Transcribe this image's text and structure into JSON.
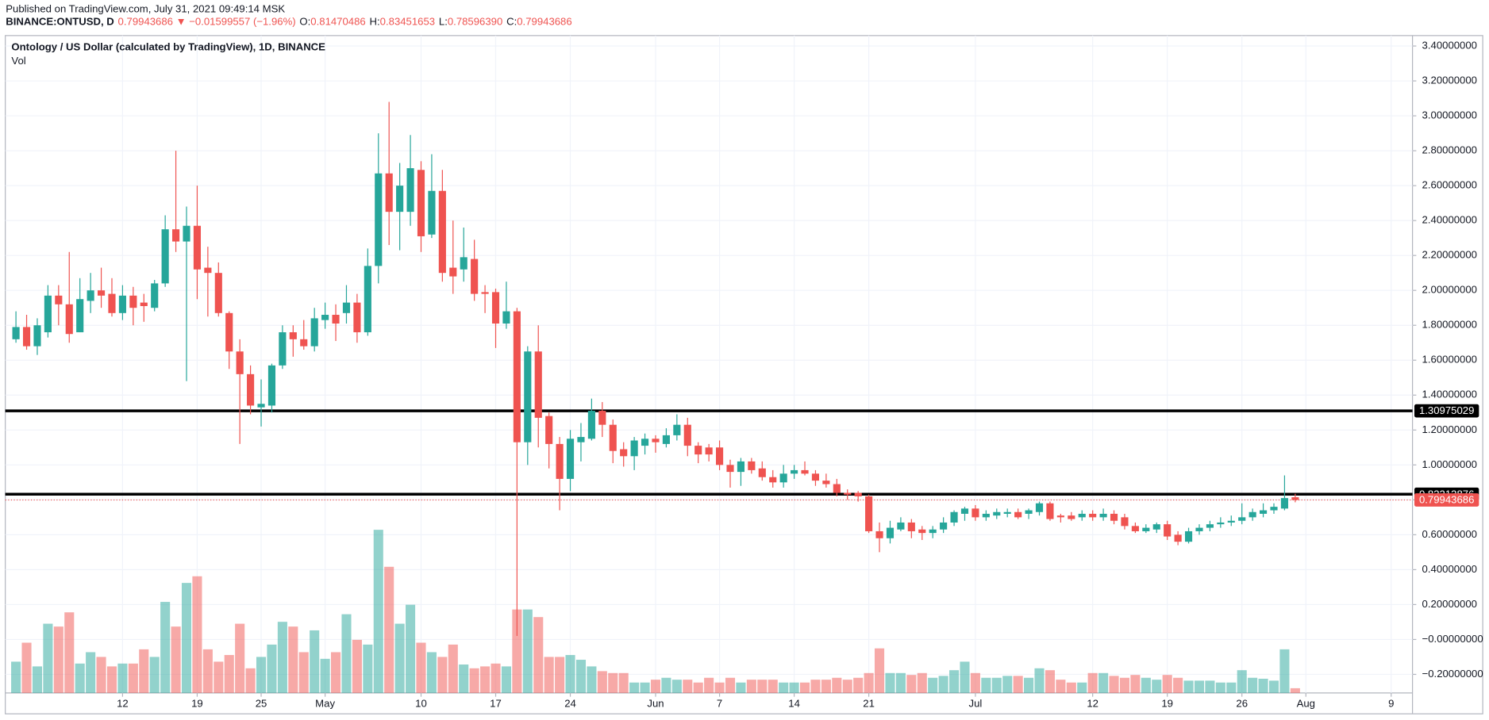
{
  "header": {
    "published": "Published on TradingView.com, July 31, 2021 09:49:14 MSK",
    "symbol": "BINANCE:ONTUSD, D",
    "last": "0.79943686",
    "arrow": "▼",
    "change": "−0.01599557 (−1.96%)",
    "o_label": "O:",
    "o": "0.81470486",
    "h_label": "H:",
    "h": "0.83451653",
    "l_label": "L:",
    "l": "0.78596390",
    "c_label": "C:",
    "c": "0.79943686"
  },
  "chart_data": {
    "type": "candlestick",
    "title": "Ontology / US Dollar (calculated by TradingView), 1D, BINANCE",
    "volume_label": "Vol",
    "up_color": "#26a69a",
    "down_color": "#ef5350",
    "grid": true,
    "xlim": [
      "2021-04-01",
      "2021-08-11"
    ],
    "ylim": [
      -0.3065,
      3.4598
    ],
    "xticks": [
      {
        "value": "2021-04-12",
        "label": "12"
      },
      {
        "value": "2021-04-19",
        "label": "19"
      },
      {
        "value": "2021-04-25",
        "label": "25"
      },
      {
        "value": "2021-05-01",
        "label": "May"
      },
      {
        "value": "2021-05-10",
        "label": "10"
      },
      {
        "value": "2021-05-17",
        "label": "17"
      },
      {
        "value": "2021-05-24",
        "label": "24"
      },
      {
        "value": "2021-06-01",
        "label": "Jun"
      },
      {
        "value": "2021-06-07",
        "label": "7"
      },
      {
        "value": "2021-06-14",
        "label": "14"
      },
      {
        "value": "2021-06-21",
        "label": "21"
      },
      {
        "value": "2021-07-01",
        "label": "Jul"
      },
      {
        "value": "2021-07-12",
        "label": "12"
      },
      {
        "value": "2021-07-19",
        "label": "19"
      },
      {
        "value": "2021-07-26",
        "label": "26"
      },
      {
        "value": "2021-08-01",
        "label": "Aug"
      },
      {
        "value": "2021-08-09",
        "label": "9"
      }
    ],
    "yticks": [
      {
        "value": 3.4,
        "label": "3.40000000"
      },
      {
        "value": 3.2,
        "label": "3.20000000"
      },
      {
        "value": 3.0,
        "label": "3.00000000"
      },
      {
        "value": 2.8,
        "label": "2.80000000"
      },
      {
        "value": 2.6,
        "label": "2.60000000"
      },
      {
        "value": 2.4,
        "label": "2.40000000"
      },
      {
        "value": 2.2,
        "label": "2.20000000"
      },
      {
        "value": 2.0,
        "label": "2.00000000"
      },
      {
        "value": 1.8,
        "label": "1.80000000"
      },
      {
        "value": 1.6,
        "label": "1.60000000"
      },
      {
        "value": 1.4,
        "label": "1.40000000"
      },
      {
        "value": 1.2,
        "label": "1.20000000"
      },
      {
        "value": 1.0,
        "label": "1.00000000"
      },
      {
        "value": 0.8,
        "label": "0.80000000"
      },
      {
        "value": 0.6,
        "label": "0.60000000"
      },
      {
        "value": 0.4,
        "label": "0.40000000"
      },
      {
        "value": 0.2,
        "label": "0.20000000"
      },
      {
        "value": 0,
        "label": "−0.00000000"
      },
      {
        "value": -0.2,
        "label": "−0.20000000"
      }
    ],
    "levels": [
      {
        "value": 1.30975029,
        "color": "#000000",
        "style": "solid"
      },
      {
        "value": 0.83213876,
        "color": "#000000",
        "style": "solid"
      },
      {
        "value": 0.79943686,
        "color": "#ef5350",
        "style": "dotted"
      }
    ],
    "x": [
      "2021-04-02",
      "2021-04-03",
      "2021-04-04",
      "2021-04-05",
      "2021-04-06",
      "2021-04-07",
      "2021-04-08",
      "2021-04-09",
      "2021-04-10",
      "2021-04-11",
      "2021-04-12",
      "2021-04-13",
      "2021-04-14",
      "2021-04-15",
      "2021-04-16",
      "2021-04-17",
      "2021-04-18",
      "2021-04-19",
      "2021-04-20",
      "2021-04-21",
      "2021-04-22",
      "2021-04-23",
      "2021-04-24",
      "2021-04-25",
      "2021-04-26",
      "2021-04-27",
      "2021-04-28",
      "2021-04-29",
      "2021-04-30",
      "2021-05-01",
      "2021-05-02",
      "2021-05-03",
      "2021-05-04",
      "2021-05-05",
      "2021-05-06",
      "2021-05-07",
      "2021-05-08",
      "2021-05-09",
      "2021-05-10",
      "2021-05-11",
      "2021-05-12",
      "2021-05-13",
      "2021-05-14",
      "2021-05-15",
      "2021-05-16",
      "2021-05-17",
      "2021-05-18",
      "2021-05-19",
      "2021-05-20",
      "2021-05-21",
      "2021-05-22",
      "2021-05-23",
      "2021-05-24",
      "2021-05-25",
      "2021-05-26",
      "2021-05-27",
      "2021-05-28",
      "2021-05-29",
      "2021-05-30",
      "2021-05-31",
      "2021-06-01",
      "2021-06-02",
      "2021-06-03",
      "2021-06-04",
      "2021-06-05",
      "2021-06-06",
      "2021-06-07",
      "2021-06-08",
      "2021-06-09",
      "2021-06-10",
      "2021-06-11",
      "2021-06-12",
      "2021-06-13",
      "2021-06-14",
      "2021-06-15",
      "2021-06-16",
      "2021-06-17",
      "2021-06-18",
      "2021-06-19",
      "2021-06-20",
      "2021-06-21",
      "2021-06-22",
      "2021-06-23",
      "2021-06-24",
      "2021-06-25",
      "2021-06-26",
      "2021-06-27",
      "2021-06-28",
      "2021-06-29",
      "2021-06-30",
      "2021-07-01",
      "2021-07-02",
      "2021-07-03",
      "2021-07-04",
      "2021-07-05",
      "2021-07-06",
      "2021-07-07",
      "2021-07-08",
      "2021-07-09",
      "2021-07-10",
      "2021-07-11",
      "2021-07-12",
      "2021-07-13",
      "2021-07-14",
      "2021-07-15",
      "2021-07-16",
      "2021-07-17",
      "2021-07-18",
      "2021-07-19",
      "2021-07-20",
      "2021-07-21",
      "2021-07-22",
      "2021-07-23",
      "2021-07-24",
      "2021-07-25",
      "2021-07-26",
      "2021-07-27",
      "2021-07-28",
      "2021-07-29",
      "2021-07-30",
      "2021-07-31"
    ],
    "open": [
      1.72,
      1.79,
      1.68,
      1.76,
      1.97,
      1.92,
      1.76,
      1.94,
      2.0,
      1.98,
      1.87,
      1.97,
      1.93,
      1.9,
      2.04,
      2.35,
      2.28,
      2.37,
      2.13,
      2.1,
      1.87,
      1.65,
      1.52,
      1.33,
      1.34,
      1.57,
      1.76,
      1.72,
      1.68,
      1.83,
      1.86,
      1.87,
      1.93,
      1.76,
      2.14,
      2.67,
      2.45,
      2.45,
      2.69,
      2.32,
      2.57,
      2.13,
      2.12,
      2.18,
      1.99,
      1.99,
      1.81,
      1.88,
      1.13,
      1.65,
      1.28,
      1.12,
      0.92,
      1.13,
      1.15,
      1.31,
      1.23,
      1.09,
      1.05,
      1.11,
      1.15,
      1.12,
      1.17,
      1.23,
      1.11,
      1.1,
      1.1,
      1.0,
      0.96,
      1.02,
      0.98,
      0.93,
      0.9,
      0.95,
      0.97,
      0.95,
      0.91,
      0.89,
      0.84,
      0.84,
      0.82,
      0.62,
      0.58,
      0.63,
      0.67,
      0.63,
      0.61,
      0.63,
      0.67,
      0.72,
      0.75,
      0.7,
      0.71,
      0.72,
      0.73,
      0.72,
      0.73,
      0.78,
      0.71,
      0.71,
      0.7,
      0.72,
      0.7,
      0.72,
      0.7,
      0.65,
      0.62,
      0.63,
      0.66,
      0.6,
      0.56,
      0.62,
      0.64,
      0.66,
      0.67,
      0.68,
      0.7,
      0.72,
      0.74,
      0.75,
      0.81470486
    ],
    "high": [
      1.88,
      1.86,
      1.84,
      2.03,
      2.03,
      2.22,
      2.07,
      2.1,
      2.13,
      2.07,
      2.03,
      2.02,
      1.98,
      2.06,
      2.43,
      2.8,
      2.48,
      2.6,
      2.25,
      2.16,
      1.88,
      1.72,
      1.57,
      1.49,
      1.58,
      1.8,
      1.8,
      1.83,
      1.9,
      1.93,
      1.92,
      2.03,
      1.98,
      2.24,
      2.9,
      3.08,
      2.73,
      2.89,
      2.74,
      2.78,
      2.69,
      2.4,
      2.36,
      2.29,
      2.03,
      2.01,
      2.05,
      1.9,
      1.68,
      1.8,
      1.3,
      1.16,
      1.2,
      1.24,
      1.38,
      1.36,
      1.26,
      1.13,
      1.16,
      1.18,
      1.17,
      1.21,
      1.29,
      1.27,
      1.13,
      1.12,
      1.14,
      1.03,
      1.04,
      1.04,
      1.02,
      0.97,
      1.0,
      1.0,
      1.02,
      0.97,
      0.95,
      0.92,
      0.86,
      0.85,
      0.83,
      0.67,
      0.68,
      0.7,
      0.69,
      0.65,
      0.65,
      0.7,
      0.74,
      0.76,
      0.77,
      0.74,
      0.75,
      0.75,
      0.75,
      0.75,
      0.79,
      0.79,
      0.72,
      0.73,
      0.74,
      0.74,
      0.75,
      0.74,
      0.72,
      0.67,
      0.66,
      0.67,
      0.68,
      0.62,
      0.64,
      0.66,
      0.68,
      0.7,
      0.71,
      0.78,
      0.75,
      0.78,
      0.78,
      0.94,
      0.83451653
    ],
    "low": [
      1.7,
      1.66,
      1.63,
      1.73,
      1.8,
      1.7,
      1.76,
      1.87,
      1.9,
      1.85,
      1.83,
      1.8,
      1.82,
      1.88,
      2.02,
      2.22,
      1.48,
      1.95,
      1.85,
      1.85,
      1.55,
      1.12,
      1.29,
      1.22,
      1.3,
      1.55,
      1.62,
      1.66,
      1.65,
      1.78,
      1.71,
      1.81,
      1.7,
      1.74,
      2.04,
      2.26,
      2.23,
      2.37,
      2.22,
      2.3,
      2.05,
      1.98,
      2.05,
      1.94,
      1.87,
      1.67,
      1.78,
      0.02,
      1.0,
      1.1,
      0.98,
      0.74,
      0.85,
      1.02,
      1.14,
      1.16,
      1.01,
      0.99,
      0.97,
      1.06,
      1.07,
      1.1,
      1.14,
      1.05,
      1.01,
      1.02,
      0.97,
      0.87,
      0.88,
      0.95,
      0.91,
      0.87,
      0.87,
      0.92,
      0.94,
      0.88,
      0.87,
      0.82,
      0.8,
      0.79,
      0.61,
      0.5,
      0.55,
      0.62,
      0.58,
      0.57,
      0.58,
      0.61,
      0.65,
      0.68,
      0.68,
      0.68,
      0.69,
      0.7,
      0.69,
      0.69,
      0.71,
      0.68,
      0.67,
      0.68,
      0.68,
      0.68,
      0.68,
      0.66,
      0.63,
      0.61,
      0.61,
      0.61,
      0.57,
      0.54,
      0.55,
      0.6,
      0.62,
      0.64,
      0.65,
      0.66,
      0.68,
      0.7,
      0.72,
      0.74,
      0.7859639
    ],
    "close": [
      1.79,
      1.68,
      1.8,
      1.97,
      1.92,
      1.75,
      1.95,
      2.0,
      1.97,
      1.87,
      1.97,
      1.9,
      1.91,
      2.04,
      2.35,
      2.28,
      2.37,
      2.12,
      2.1,
      1.87,
      1.65,
      1.52,
      1.34,
      1.35,
      1.57,
      1.76,
      1.72,
      1.68,
      1.84,
      1.86,
      1.81,
      1.93,
      1.76,
      2.14,
      2.67,
      2.45,
      2.6,
      2.7,
      2.31,
      2.57,
      2.1,
      2.08,
      2.19,
      1.98,
      1.98,
      1.81,
      1.88,
      1.13,
      1.65,
      1.27,
      1.12,
      0.92,
      1.15,
      1.16,
      1.31,
      1.23,
      1.08,
      1.05,
      1.14,
      1.15,
      1.13,
      1.17,
      1.23,
      1.11,
      1.06,
      1.06,
      1.0,
      0.96,
      1.02,
      0.97,
      0.93,
      0.9,
      0.95,
      0.97,
      0.95,
      0.91,
      0.89,
      0.84,
      0.83,
      0.82,
      0.62,
      0.58,
      0.64,
      0.67,
      0.62,
      0.61,
      0.63,
      0.67,
      0.73,
      0.75,
      0.7,
      0.72,
      0.73,
      0.73,
      0.7,
      0.74,
      0.78,
      0.69,
      0.7,
      0.69,
      0.72,
      0.7,
      0.72,
      0.68,
      0.65,
      0.62,
      0.64,
      0.66,
      0.59,
      0.56,
      0.62,
      0.64,
      0.66,
      0.67,
      0.68,
      0.7,
      0.73,
      0.74,
      0.76,
      0.81,
      0.79943686
    ],
    "volume": [
      33,
      53,
      28,
      73,
      70,
      85,
      31,
      43,
      38,
      28,
      31,
      31,
      46,
      38,
      96,
      70,
      116,
      123,
      46,
      33,
      40,
      73,
      26,
      38,
      51,
      75,
      70,
      43,
      66,
      36,
      43,
      83,
      56,
      51,
      172,
      133,
      73,
      93,
      53,
      43,
      38,
      51,
      30,
      26,
      28,
      31,
      28,
      88,
      88,
      80,
      38,
      38,
      40,
      35,
      28,
      23,
      21,
      21,
      11,
      11,
      14,
      16,
      14,
      14,
      11,
      16,
      11,
      16,
      11,
      14,
      14,
      14,
      11,
      11,
      11,
      14,
      14,
      16,
      14,
      16,
      21,
      47,
      21,
      21,
      19,
      21,
      16,
      18,
      24,
      33,
      21,
      16,
      16,
      18,
      18,
      16,
      26,
      24,
      14,
      11,
      11,
      21,
      21,
      18,
      16,
      19,
      16,
      14,
      19,
      16,
      13,
      13,
      13,
      11,
      11,
      24,
      16,
      15,
      13,
      46,
      5
    ]
  }
}
